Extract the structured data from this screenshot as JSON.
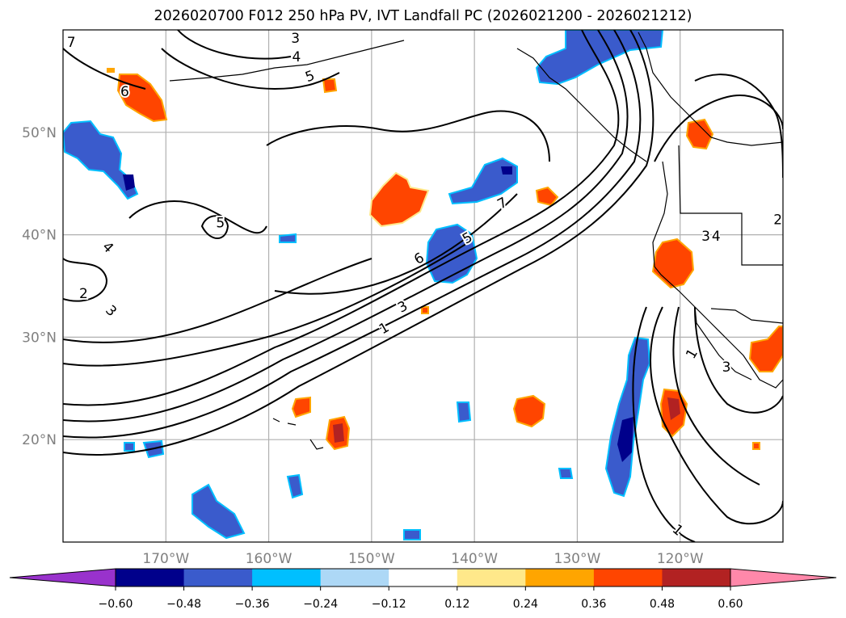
{
  "title": "2026020700 F012 250 hPa PV, IVT Landfall PC (2026021200 - 2026021212)",
  "map": {
    "projection": "Plate Carree",
    "extent": {
      "lon_min": -180,
      "lon_max": -110,
      "lat_min": 10,
      "lat_max": 60
    },
    "gridlines": true,
    "coastlines": true,
    "borders": true,
    "lon_labels": [
      "170°W",
      "160°W",
      "150°W",
      "140°W",
      "130°W",
      "120°W"
    ],
    "lon_values": [
      -170,
      -160,
      -150,
      -140,
      -130,
      -120
    ],
    "lat_labels": [
      "50°N",
      "40°N",
      "30°N",
      "20°N"
    ],
    "lat_values": [
      50,
      40,
      30,
      20
    ]
  },
  "colorbar": {
    "orientation": "horizontal",
    "extend": "both",
    "tick_labels": [
      "−0.60",
      "−0.48",
      "−0.36",
      "−0.24",
      "−0.12",
      "0.12",
      "0.24",
      "0.36",
      "0.48",
      "0.60"
    ],
    "tick_values": [
      -0.6,
      -0.48,
      -0.36,
      -0.24,
      -0.12,
      0.12,
      0.24,
      0.36,
      0.48,
      0.6
    ],
    "under_color": "#9932cc",
    "over_color": "#ff88aa",
    "bin_colors": [
      "#00008b",
      "#3a5bcc",
      "#00bfff",
      "#add8f6",
      "#ffffff",
      "#ffe88a",
      "#ffa500",
      "#ff4500",
      "#b22222"
    ]
  },
  "colors": {
    "neg_1": "#add8f6",
    "neg_2": "#00bfff",
    "neg_3": "#3a5bcc",
    "neg_4": "#00008b",
    "pos_1": "#ffe88a",
    "pos_2": "#ffa500",
    "pos_3": "#ff4500",
    "pos_4": "#b22222"
  },
  "contour_labels": [
    {
      "text": "1",
      "lon": -148.8,
      "lat": 30.9,
      "rot": -30
    },
    {
      "text": "3",
      "lon": -147,
      "lat": 33,
      "rot": -28
    },
    {
      "text": "6",
      "lon": -145.4,
      "lat": 37.7,
      "rot": -30
    },
    {
      "text": "5",
      "lon": -140.7,
      "lat": 39.7,
      "rot": -30
    },
    {
      "text": "7",
      "lon": -137.3,
      "lat": 43.1,
      "rot": -28
    },
    {
      "text": "2",
      "lon": -178,
      "lat": 34.3,
      "rot": 0
    },
    {
      "text": "3",
      "lon": -175.3,
      "lat": 32.6,
      "rot": 45
    },
    {
      "text": "4",
      "lon": -175.6,
      "lat": 38.8,
      "rot": 45
    },
    {
      "text": "5",
      "lon": -164.7,
      "lat": 41.2,
      "rot": 0
    },
    {
      "text": "5",
      "lon": -156,
      "lat": 55.5,
      "rot": -20
    },
    {
      "text": "3",
      "lon": -157.4,
      "lat": 59.2,
      "rot": 0
    },
    {
      "text": "4",
      "lon": -157.3,
      "lat": 57.4,
      "rot": 0
    },
    {
      "text": "6",
      "lon": -174,
      "lat": 54,
      "rot": 0
    },
    {
      "text": "7",
      "lon": -179.2,
      "lat": 58.8,
      "rot": 0
    },
    {
      "text": "3",
      "lon": -117.5,
      "lat": 39.9,
      "rot": 0
    },
    {
      "text": "4",
      "lon": -116.5,
      "lat": 39.9,
      "rot": 0
    },
    {
      "text": "1",
      "lon": -118.9,
      "lat": 28.4,
      "rot": -60
    },
    {
      "text": "3",
      "lon": -115.5,
      "lat": 27.1,
      "rot": 0
    },
    {
      "text": "1",
      "lon": -120.2,
      "lat": 11.2,
      "rot": 40
    },
    {
      "text": "2",
      "lon": -110.5,
      "lat": 41.5,
      "rot": 0
    }
  ]
}
